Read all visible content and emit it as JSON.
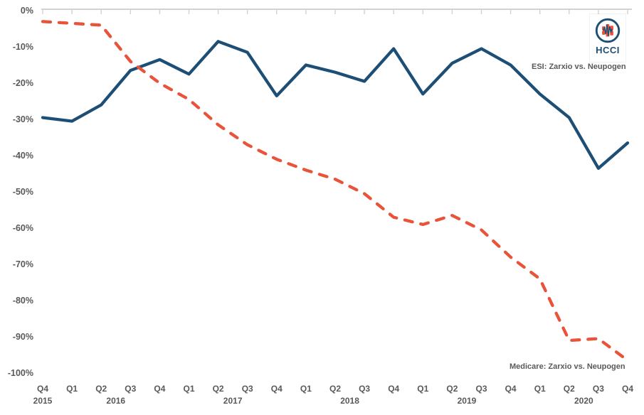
{
  "page": {
    "background": "#ffffff"
  },
  "logo": {
    "text": "HCCI",
    "navy": "#1D4F76",
    "orange": "#E8533A",
    "icon": "pulse-bars-icon"
  },
  "annotations": {
    "esi_label": "ESI: Zarxio vs. Neupogen",
    "medicare_label": "Medicare: Zarxio vs. Neupogen"
  },
  "chart_data": {
    "type": "line",
    "title": "",
    "categories": [
      "Q4 2015",
      "Q1 2016",
      "Q2 2016",
      "Q3 2016",
      "Q4 2016",
      "Q1 2017",
      "Q2 2017",
      "Q3 2017",
      "Q4 2017",
      "Q1 2018",
      "Q2 2018",
      "Q3 2018",
      "Q4 2018",
      "Q1 2019",
      "Q2 2019",
      "Q3 2019",
      "Q4 2019",
      "Q1 2020",
      "Q2 2020",
      "Q3 2020",
      "Q4 2020"
    ],
    "years": [
      {
        "label": "2015",
        "x_index": 0
      },
      {
        "label": "2016",
        "x_index": 2.5
      },
      {
        "label": "2017",
        "x_index": 6.5
      },
      {
        "label": "2018",
        "x_index": 10.5
      },
      {
        "label": "2019",
        "x_index": 14.5
      },
      {
        "label": "2020",
        "x_index": 18.5
      }
    ],
    "series": [
      {
        "name": "ESI: Zarxio vs. Neupogen",
        "color": "#1D4F76",
        "style": "solid",
        "values": [
          -29.5,
          -30.5,
          -26,
          -16.5,
          -13.5,
          -17.5,
          -8.5,
          -11.5,
          -23.5,
          -15,
          -17,
          -19.5,
          -10.5,
          -23,
          -14.5,
          -10.5,
          -15,
          -23,
          -29.5,
          -43.5,
          -36.5
        ]
      },
      {
        "name": "Medicare: Zarxio vs. Neupogen",
        "color": "#E8533A",
        "style": "dashed",
        "values": [
          -3,
          -3.5,
          -4,
          -14,
          -20,
          -24.5,
          -31.5,
          -37,
          -41,
          -44,
          -46.5,
          -50.5,
          -57,
          -59,
          -56.5,
          -60.5,
          -68,
          -74,
          -91,
          -90.5,
          -96.5
        ]
      }
    ],
    "ylim": [
      -100,
      0
    ],
    "ytick_step": 10,
    "ytick_labels": [
      "0%",
      "-10%",
      "-20%",
      "-30%",
      "-40%",
      "-50%",
      "-60%",
      "-70%",
      "-80%",
      "-90%",
      "-100%"
    ],
    "grid": false,
    "axis_position": "top",
    "axis_color": "#D2D2D2",
    "label_color": "#595959",
    "legend_position": "inline-annotations"
  }
}
